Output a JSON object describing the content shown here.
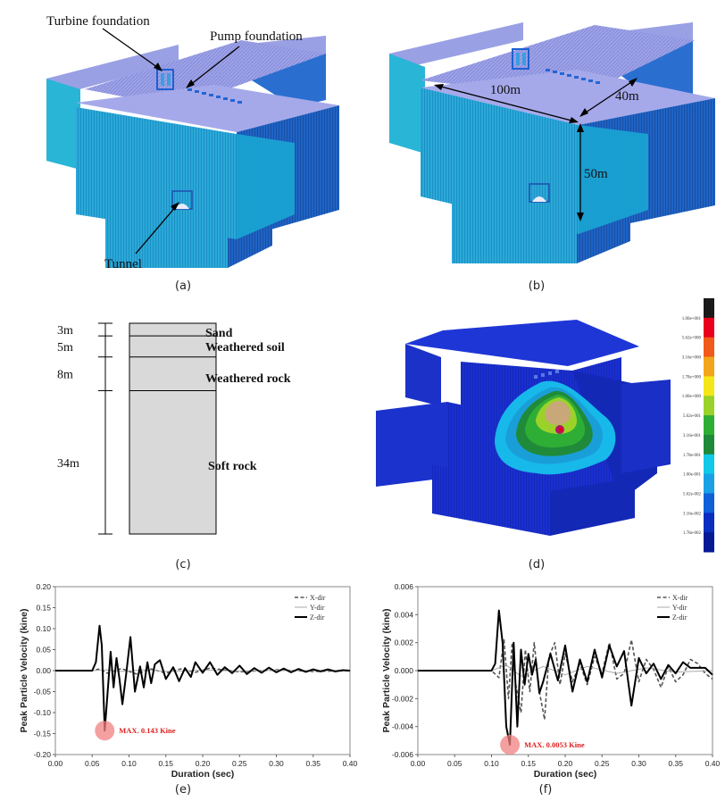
{
  "panel_a": {
    "labels": {
      "turbine": "Turbine foundation",
      "pump": "Pump foundation",
      "tunnel": "Tunnel"
    },
    "caption": "(a)"
  },
  "panel_b": {
    "dims": {
      "length": "100m",
      "width": "40m",
      "depth": "50m"
    },
    "caption": "(b)"
  },
  "panel_c": {
    "layers": [
      {
        "thickness": "3m",
        "name": "Sand",
        "top": 0,
        "bottom": 3
      },
      {
        "thickness": "5m",
        "name": "Weathered soil",
        "top": 3,
        "bottom": 8
      },
      {
        "thickness": "8m",
        "name": "Weathered rock",
        "top": 8,
        "bottom": 16
      },
      {
        "thickness": "34m",
        "name": "Soft rock",
        "top": 16,
        "bottom": 50
      }
    ],
    "caption": "(c)"
  },
  "panel_d": {
    "scale_labels": [
      "1.00e+001",
      "5.62e+000",
      "3.16e+000",
      "1.78e+000",
      "1.00e+000",
      "5.62e-001",
      "3.16e-001",
      "1.78e-001",
      "1.00e-001",
      "5.62e-002",
      "3.16e-002",
      "1.78e-002"
    ],
    "scale_colors": [
      "#1a1a1a",
      "#e8001c",
      "#f05a1a",
      "#f2a51a",
      "#f5e61a",
      "#9bd22a",
      "#2fae36",
      "#1f8a3a",
      "#10c8e8",
      "#1aa0e6",
      "#1060d8",
      "#0a2ec0",
      "#061a96"
    ],
    "caption": "(d)"
  },
  "chart_e": {
    "caption": "(e)",
    "annotation": "MAX. 0.143 Kine",
    "legend": [
      "X-dir",
      "Y-dir",
      "Z-dir"
    ]
  },
  "chart_f": {
    "caption": "(f)",
    "annotation": "MAX. 0.0053 Kine",
    "legend": [
      "X-dir",
      "Y-dir",
      "Z-dir"
    ]
  },
  "chart_data": [
    {
      "type": "line",
      "xlabel": "Duration (sec)",
      "ylabel": "Peak Particle Velocity (kine)",
      "xlim": [
        0,
        0.4
      ],
      "ylim": [
        -0.2,
        0.2
      ],
      "xticks": [
        "0.00",
        "0.05",
        "0.10",
        "0.15",
        "0.20",
        "0.25",
        "0.30",
        "0.35",
        "0.40"
      ],
      "yticks": [
        "0.20",
        "0.15",
        "0.10",
        "0.05",
        "0.00",
        "-0.05",
        "-0.10",
        "-0.15",
        "-0.20"
      ],
      "series": [
        {
          "name": "X-dir",
          "x": [
            0,
            0.05,
            0.06,
            0.07,
            0.09,
            0.11,
            0.13,
            0.15,
            0.17,
            0.19,
            0.21,
            0.25,
            0.3,
            0.35,
            0.4
          ],
          "y": [
            0,
            0,
            0.004,
            -0.006,
            0.005,
            -0.008,
            0.004,
            -0.006,
            0.004,
            -0.004,
            0.006,
            -0.003,
            0.002,
            -0.002,
            0
          ]
        },
        {
          "name": "Y-dir",
          "x": [
            0,
            0.05,
            0.07,
            0.09,
            0.12,
            0.15,
            0.2,
            0.25,
            0.3,
            0.35,
            0.4
          ],
          "y": [
            0,
            0,
            0.002,
            -0.002,
            0.002,
            -0.002,
            0.001,
            -0.001,
            0.001,
            0,
            0
          ]
        },
        {
          "name": "Z-dir",
          "x": [
            0,
            0.05,
            0.055,
            0.06,
            0.063,
            0.067,
            0.071,
            0.075,
            0.079,
            0.083,
            0.087,
            0.091,
            0.096,
            0.102,
            0.108,
            0.115,
            0.12,
            0.125,
            0.13,
            0.135,
            0.142,
            0.15,
            0.16,
            0.168,
            0.176,
            0.184,
            0.19,
            0.2,
            0.21,
            0.22,
            0.23,
            0.24,
            0.25,
            0.26,
            0.27,
            0.28,
            0.29,
            0.3,
            0.31,
            0.32,
            0.33,
            0.34,
            0.35,
            0.36,
            0.37,
            0.38,
            0.39,
            0.4
          ],
          "y": [
            0,
            0,
            0.02,
            0.107,
            0.06,
            -0.143,
            -0.05,
            0.045,
            -0.04,
            0.03,
            -0.02,
            -0.08,
            -0.01,
            0.08,
            -0.05,
            0.01,
            -0.04,
            0.02,
            -0.03,
            0.015,
            0.025,
            -0.02,
            0.008,
            -0.025,
            0.006,
            -0.015,
            0.02,
            -0.005,
            0.02,
            -0.01,
            0.008,
            -0.006,
            0.012,
            -0.008,
            0.006,
            -0.005,
            0.007,
            -0.004,
            0.005,
            -0.004,
            0.004,
            -0.003,
            0.003,
            -0.002,
            0.003,
            -0.002,
            0.001,
            0
          ]
        }
      ]
    },
    {
      "type": "line",
      "xlabel": "Duration (sec)",
      "ylabel": "Peak Particle Velocity (kine)",
      "xlim": [
        0,
        0.4
      ],
      "ylim": [
        -0.006,
        0.006
      ],
      "xticks": [
        "0.00",
        "0.05",
        "0.10",
        "0.15",
        "0.20",
        "0.25",
        "0.30",
        "0.35",
        "0.40"
      ],
      "yticks": [
        "0.006",
        "0.004",
        "0.002",
        "0.000",
        "-0.002",
        "-0.004",
        "-0.006"
      ],
      "series": [
        {
          "name": "X-dir",
          "x": [
            0,
            0.1,
            0.11,
            0.117,
            0.123,
            0.128,
            0.133,
            0.14,
            0.146,
            0.152,
            0.158,
            0.165,
            0.172,
            0.178,
            0.186,
            0.193,
            0.2,
            0.21,
            0.22,
            0.23,
            0.24,
            0.25,
            0.26,
            0.27,
            0.28,
            0.29,
            0.3,
            0.31,
            0.32,
            0.33,
            0.34,
            0.35,
            0.36,
            0.37,
            0.38,
            0.39,
            0.4
          ],
          "y": [
            0,
            0,
            -0.0005,
            0.0022,
            -0.002,
            0.002,
            -0.001,
            -0.003,
            0.0015,
            -0.0015,
            0.002,
            -0.0015,
            -0.0035,
            0.001,
            0.002,
            -0.001,
            0.0012,
            -0.0008,
            0.0005,
            -0.001,
            0.001,
            -0.0002,
            0.002,
            -0.0006,
            -0.0002,
            0.0022,
            -0.0008,
            0.0008,
            0.0001,
            -0.0012,
            0.0003,
            -0.0008,
            -0.0003,
            0.0008,
            0.0005,
            -0.0002,
            -0.0006
          ]
        },
        {
          "name": "Y-dir",
          "x": [
            0,
            0.1,
            0.12,
            0.14,
            0.17,
            0.2,
            0.23,
            0.27,
            0.31,
            0.35,
            0.4
          ],
          "y": [
            0,
            0,
            0.0004,
            -0.0004,
            0.0003,
            -0.0003,
            0.0003,
            -0.0002,
            0.0002,
            -0.0001,
            0
          ]
        },
        {
          "name": "Z-dir",
          "x": [
            0,
            0.1,
            0.105,
            0.11,
            0.115,
            0.12,
            0.125,
            0.13,
            0.135,
            0.14,
            0.145,
            0.15,
            0.155,
            0.16,
            0.165,
            0.17,
            0.175,
            0.18,
            0.19,
            0.2,
            0.21,
            0.22,
            0.23,
            0.24,
            0.25,
            0.26,
            0.27,
            0.28,
            0.29,
            0.3,
            0.31,
            0.32,
            0.33,
            0.34,
            0.35,
            0.36,
            0.37,
            0.38,
            0.39,
            0.4
          ],
          "y": [
            0,
            0,
            0.0005,
            0.0043,
            0.002,
            -0.004,
            -0.0053,
            0.002,
            -0.004,
            0.0015,
            -0.001,
            0.0012,
            -0.0003,
            0.0008,
            -0.0016,
            -0.0008,
            0.0002,
            0.0012,
            -0.0007,
            0.0018,
            -0.0015,
            0.0008,
            -0.0008,
            0.0015,
            -0.0005,
            0.0018,
            0.0003,
            0.0014,
            -0.0025,
            0.0009,
            -0.0002,
            0.0005,
            -0.0006,
            0.0004,
            -0.0002,
            0.0006,
            0.0002,
            0.0002,
            0.0002,
            -0.0003
          ]
        }
      ]
    }
  ]
}
